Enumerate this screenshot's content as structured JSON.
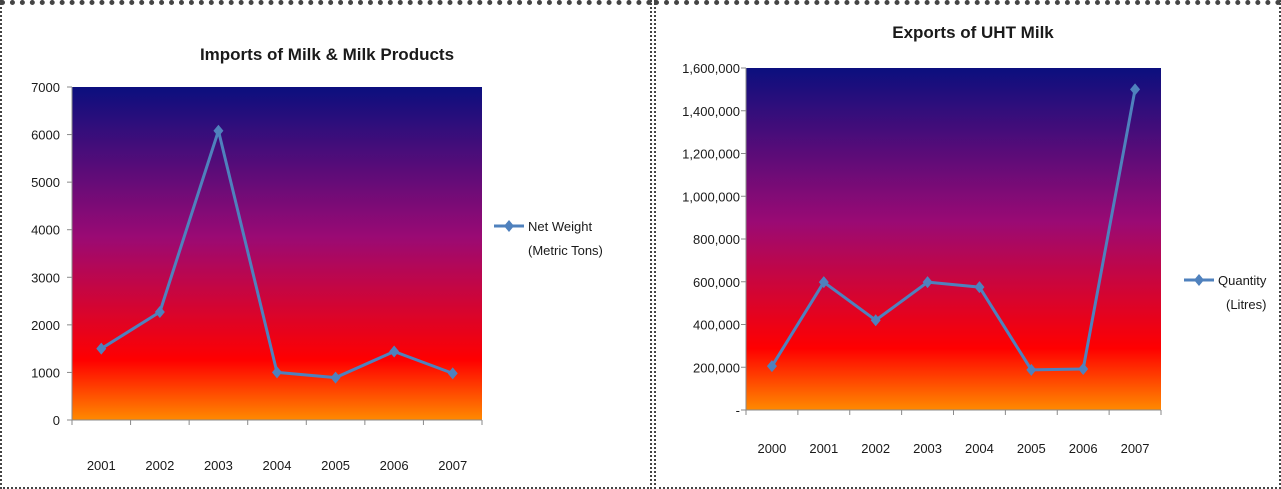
{
  "chart_data": [
    {
      "type": "line",
      "title": "Imports of Milk & Milk Products",
      "xlabel": "",
      "ylabel": "",
      "categories": [
        "2001",
        "2002",
        "2003",
        "2004",
        "2005",
        "2006",
        "2007"
      ],
      "series": [
        {
          "name": "Net Weight (Metric Tons)",
          "name_lines": [
            "Net Weight",
            "(Metric Tons)"
          ],
          "values": [
            1500,
            2270,
            6080,
            1000,
            890,
            1440,
            980
          ]
        }
      ],
      "ylim": [
        0,
        7000
      ],
      "yticks": [
        "0",
        "1000",
        "2000",
        "3000",
        "4000",
        "5000",
        "6000",
        "7000"
      ],
      "legend": "right",
      "grid": false,
      "colors": {
        "line": "#4f81bd",
        "bg_top": "#0b0f7e",
        "bg_mid": "#9a0a74",
        "bg_low": "#ff0000",
        "bg_bottom": "#ff8a00"
      }
    },
    {
      "type": "line",
      "title": "Exports of UHT Milk",
      "xlabel": "",
      "ylabel": "",
      "categories": [
        "2000",
        "2001",
        "2002",
        "2003",
        "2004",
        "2005",
        "2006",
        "2007"
      ],
      "series": [
        {
          "name": "Quantity (Litres)",
          "name_lines": [
            "Quantity",
            "(Litres)"
          ],
          "values": [
            205000,
            598000,
            420000,
            598000,
            575000,
            188000,
            192000,
            1500000
          ]
        }
      ],
      "ylim": [
        0,
        1600000
      ],
      "yticks": [
        "-",
        "200,000",
        "400,000",
        "600,000",
        "800,000",
        "1,000,000",
        "1,200,000",
        "1,400,000",
        "1,600,000"
      ],
      "legend": "right",
      "grid": false,
      "colors": {
        "line": "#4f81bd",
        "bg_top": "#0b0f7e",
        "bg_mid": "#9a0a74",
        "bg_low": "#ff0000",
        "bg_bottom": "#ff8a00"
      }
    }
  ]
}
